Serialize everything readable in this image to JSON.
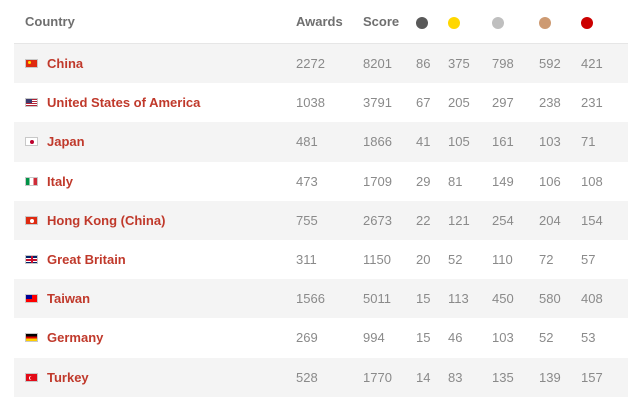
{
  "table": {
    "headers": {
      "country": "Country",
      "awards": "Awards",
      "score": "Score"
    },
    "medal_columns": [
      {
        "name": "dark-gray-medal",
        "color": "#595959"
      },
      {
        "name": "gold-medal",
        "color": "#ffd700"
      },
      {
        "name": "silver-medal",
        "color": "#bfbfbf"
      },
      {
        "name": "bronze-medal",
        "color": "#cd9a72"
      },
      {
        "name": "red-medal",
        "color": "#cc0000"
      }
    ],
    "rows": [
      {
        "country": "China",
        "flag": "china-flag-icon",
        "awards": "2272",
        "score": "8201",
        "m1": "86",
        "m2": "375",
        "m3": "798",
        "m4": "592",
        "m5": "421"
      },
      {
        "country": "United States of America",
        "flag": "usa-flag-icon",
        "awards": "1038",
        "score": "3791",
        "m1": "67",
        "m2": "205",
        "m3": "297",
        "m4": "238",
        "m5": "231"
      },
      {
        "country": "Japan",
        "flag": "japan-flag-icon",
        "awards": "481",
        "score": "1866",
        "m1": "41",
        "m2": "105",
        "m3": "161",
        "m4": "103",
        "m5": "71"
      },
      {
        "country": "Italy",
        "flag": "italy-flag-icon",
        "awards": "473",
        "score": "1709",
        "m1": "29",
        "m2": "81",
        "m3": "149",
        "m4": "106",
        "m5": "108"
      },
      {
        "country": "Hong Kong (China)",
        "flag": "hong-kong-flag-icon",
        "awards": "755",
        "score": "2673",
        "m1": "22",
        "m2": "121",
        "m3": "254",
        "m4": "204",
        "m5": "154"
      },
      {
        "country": "Great Britain",
        "flag": "great-britain-flag-icon",
        "awards": "311",
        "score": "1150",
        "m1": "20",
        "m2": "52",
        "m3": "110",
        "m4": "72",
        "m5": "57"
      },
      {
        "country": "Taiwan",
        "flag": "taiwan-flag-icon",
        "awards": "1566",
        "score": "5011",
        "m1": "15",
        "m2": "113",
        "m3": "450",
        "m4": "580",
        "m5": "408"
      },
      {
        "country": "Germany",
        "flag": "germany-flag-icon",
        "awards": "269",
        "score": "994",
        "m1": "15",
        "m2": "46",
        "m3": "103",
        "m4": "52",
        "m5": "53"
      },
      {
        "country": "Turkey",
        "flag": "turkey-flag-icon",
        "awards": "528",
        "score": "1770",
        "m1": "14",
        "m2": "83",
        "m3": "135",
        "m4": "139",
        "m5": "157"
      }
    ]
  }
}
